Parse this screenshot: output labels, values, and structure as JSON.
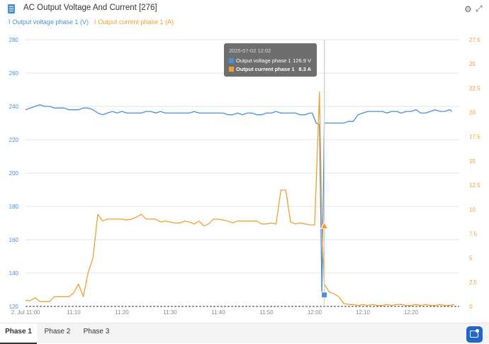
{
  "header": {
    "title": "AC Output Voltage And Current [276]",
    "icons": [
      "document-icon",
      "gear-icon",
      "expand-icon"
    ]
  },
  "legend": {
    "voltage_label": "Output voltage phase 1 (V)",
    "current_label": "Output current phase 1 (A)"
  },
  "tooltip": {
    "time": "2025-07-02 12:02",
    "voltage_label": "Output voltage phase 1",
    "voltage_value": "126.9 V",
    "current_label": "Output current phase 1",
    "current_value": "8.3 A"
  },
  "tabs": [
    "Phase 1",
    "Phase 2",
    "Phase 3"
  ],
  "active_tab": 0,
  "colors": {
    "voltage": "#4a90d9",
    "current": "#f0a030"
  },
  "chart_data": {
    "type": "line",
    "x_axis": {
      "range": [
        "2025-07-02 11:00",
        "2025-07-02 12:30"
      ],
      "tick_labels": [
        "2. Jul 11:00",
        "11:10",
        "11:20",
        "11:30",
        "11:40",
        "11:50",
        "12:00",
        "12:10",
        "12:20"
      ],
      "tick_minutes": [
        0,
        10,
        20,
        30,
        40,
        50,
        60,
        70,
        80
      ]
    },
    "y_left": {
      "unit": "V",
      "range": [
        120,
        280
      ],
      "ticks": [
        120,
        140,
        160,
        180,
        200,
        220,
        240,
        260,
        280
      ]
    },
    "y_right": {
      "unit": "A",
      "range": [
        0,
        27.5
      ],
      "ticks": [
        "0",
        "2.5",
        "5",
        "7.5",
        "10",
        "12.5",
        "15",
        "17.5",
        "20",
        "22.5",
        "25",
        "27.5"
      ]
    },
    "grid": true,
    "legend_position": "top-left",
    "series": [
      {
        "name": "Output voltage phase 1 (V)",
        "axis": "left",
        "minutes": [
          0,
          1,
          2,
          3,
          4,
          5,
          6,
          7,
          8,
          9,
          10,
          11,
          12,
          13,
          14,
          15,
          16,
          17,
          18,
          19,
          20,
          21,
          22,
          23,
          24,
          25,
          26,
          27,
          28,
          29,
          30,
          31,
          32,
          33,
          34,
          35,
          36,
          37,
          38,
          39,
          40,
          41,
          42,
          43,
          44,
          45,
          46,
          47,
          48,
          49,
          50,
          51,
          52,
          53,
          54,
          55,
          56,
          57,
          58,
          59,
          59.5,
          60.3,
          61,
          61.5,
          62,
          63,
          64,
          65,
          66,
          67,
          68,
          69,
          70,
          71,
          72,
          73,
          74,
          75,
          76,
          77,
          78,
          79,
          80,
          81,
          82,
          83,
          84,
          85,
          86,
          87,
          88,
          88.5
        ],
        "values": [
          238,
          239,
          240,
          241,
          240,
          240,
          239,
          239,
          239,
          238,
          238,
          238,
          239,
          239,
          238,
          236,
          235,
          236,
          237,
          236,
          237,
          236,
          236,
          236,
          236,
          237,
          237,
          236,
          237,
          236,
          236,
          236,
          236,
          236,
          236,
          237,
          236,
          236,
          236,
          236,
          236,
          236,
          235,
          235,
          236,
          235,
          236,
          236,
          235,
          235,
          236,
          236,
          237,
          236,
          236,
          236,
          236,
          235,
          235,
          236,
          236,
          230,
          229,
          126.9,
          230,
          230,
          230,
          230,
          230,
          231,
          231,
          235,
          236,
          237,
          237,
          237,
          237,
          236,
          237,
          237,
          236,
          237,
          237,
          238,
          236,
          236,
          237,
          238,
          237,
          237,
          238,
          237
        ]
      },
      {
        "name": "Output current phase 1 (A)",
        "axis": "right",
        "minutes": [
          0,
          1,
          2,
          3,
          4,
          5,
          6,
          7,
          8,
          9,
          10,
          11,
          12,
          13,
          14,
          15,
          16,
          17,
          18,
          19,
          20,
          21,
          22,
          23,
          24,
          25,
          26,
          27,
          28,
          29,
          30,
          31,
          32,
          33,
          34,
          35,
          36,
          37,
          38,
          39,
          40,
          41,
          42,
          43,
          44,
          45,
          46,
          47,
          48,
          49,
          50,
          51,
          52,
          53,
          54,
          55,
          56,
          57,
          58,
          59,
          60,
          61,
          61.5,
          62,
          63,
          64,
          65,
          66,
          67,
          68,
          69,
          70,
          71,
          72,
          73,
          74,
          75,
          76,
          77,
          78,
          79,
          80,
          81,
          82,
          83,
          84,
          85,
          86,
          87,
          88,
          89
        ],
        "values": [
          0.6,
          0.6,
          0.9,
          0.5,
          0.5,
          0.5,
          1.0,
          1.0,
          1.0,
          1.0,
          1.4,
          2.3,
          1.0,
          3.5,
          5.0,
          9.5,
          8.8,
          9.0,
          9.0,
          9.0,
          9.0,
          8.9,
          9.0,
          9.2,
          9.5,
          9.0,
          9.0,
          9.0,
          8.7,
          8.8,
          8.7,
          8.6,
          8.6,
          8.8,
          8.7,
          8.5,
          8.8,
          8.3,
          8.5,
          9.0,
          9.0,
          8.9,
          8.8,
          8.6,
          8.8,
          8.8,
          8.8,
          8.8,
          8.8,
          8.5,
          8.5,
          8.6,
          8.5,
          12.0,
          12.0,
          8.7,
          8.5,
          8.6,
          8.5,
          8.4,
          8.4,
          22.1,
          8.3,
          2.3,
          1.5,
          1.3,
          1.0,
          0.3,
          0.2,
          0.2,
          0.1,
          0.2,
          0.1,
          0.2,
          0.1,
          0.1,
          0.2,
          0.1,
          0.2,
          0.2,
          0.1,
          0.1,
          0.2,
          0.1,
          0.2,
          0.1,
          0.1,
          0.2,
          0.1,
          0.1,
          0.2
        ]
      }
    ],
    "cursor_minute": 62
  }
}
